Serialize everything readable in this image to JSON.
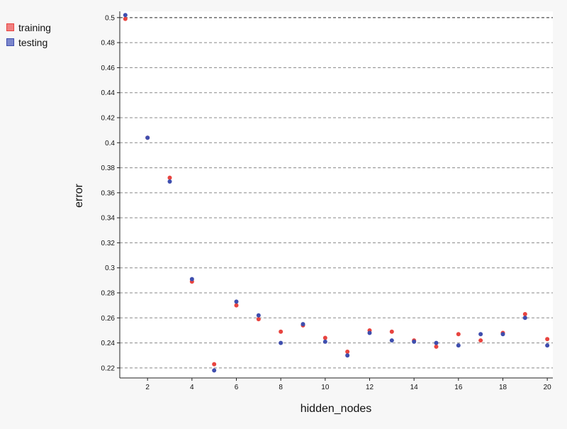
{
  "chart_data": {
    "type": "scatter",
    "title": "",
    "xlabel": "hidden_nodes",
    "ylabel": "error",
    "xlim": [
      0.75,
      20.25
    ],
    "ylim": [
      0.212,
      0.505
    ],
    "xticks": [
      2,
      4,
      6,
      8,
      10,
      12,
      14,
      16,
      18,
      20
    ],
    "yticks": [
      0.22,
      0.24,
      0.26,
      0.28,
      0.3,
      0.32,
      0.34,
      0.36,
      0.38,
      0.4,
      0.42,
      0.44,
      0.46,
      0.48,
      0.5
    ],
    "ytick_labels": [
      "0.22",
      "0.24",
      "0.26",
      "0.28",
      "0.3",
      "0.32",
      "0.34",
      "0.36",
      "0.38",
      "0.4",
      "0.42",
      "0.44",
      "0.46",
      "0.48",
      "0.5"
    ],
    "grid": "horizontal-dashed",
    "legend_position": "top-left",
    "series": [
      {
        "name": "training",
        "color": "#e8443f",
        "x": [
          1,
          2,
          3,
          4,
          5,
          6,
          7,
          8,
          9,
          10,
          11,
          12,
          13,
          14,
          15,
          16,
          17,
          18,
          19,
          20
        ],
        "y": [
          0.499,
          0.404,
          0.372,
          0.289,
          0.223,
          0.27,
          0.259,
          0.249,
          0.254,
          0.244,
          0.233,
          0.25,
          0.249,
          0.242,
          0.237,
          0.247,
          0.242,
          0.248,
          0.263,
          0.243
        ]
      },
      {
        "name": "testing",
        "color": "#3f4eae",
        "x": [
          1,
          2,
          3,
          4,
          5,
          6,
          7,
          8,
          9,
          10,
          11,
          12,
          13,
          14,
          15,
          16,
          17,
          18,
          19,
          20
        ],
        "y": [
          0.502,
          0.404,
          0.369,
          0.291,
          0.218,
          0.273,
          0.262,
          0.24,
          0.255,
          0.241,
          0.23,
          0.248,
          0.242,
          0.241,
          0.24,
          0.238,
          0.247,
          0.247,
          0.26,
          0.238
        ]
      }
    ]
  },
  "legend": {
    "training_label": "training",
    "testing_label": "testing",
    "training_swatch_color": "#f08080",
    "testing_swatch_color": "#7b86cc"
  }
}
